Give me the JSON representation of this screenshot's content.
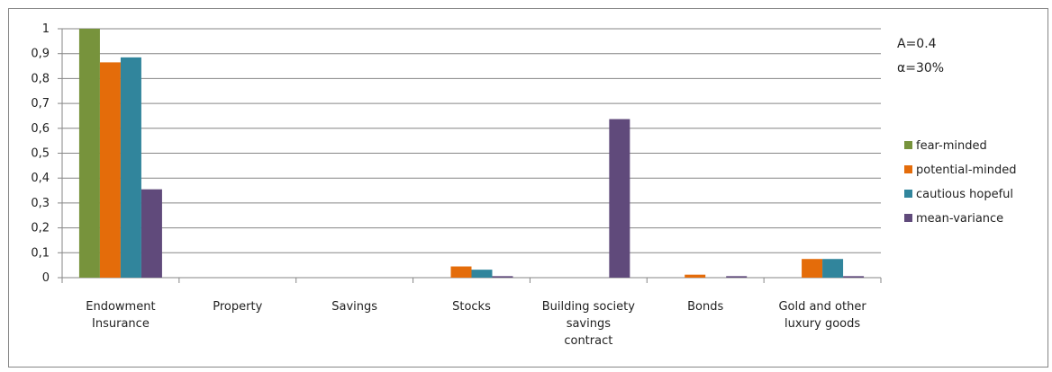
{
  "chart_data": {
    "type": "bar",
    "categories": [
      [
        "Endowment",
        "Insurance"
      ],
      [
        "Property"
      ],
      [
        "Savings"
      ],
      [
        "Stocks"
      ],
      [
        "Building society",
        "savings",
        "contract"
      ],
      [
        "Bonds"
      ],
      [
        "Gold and other",
        "luxury goods"
      ]
    ],
    "series": [
      {
        "name": "fear-minded",
        "color": "#77933C",
        "values": [
          1.0,
          0,
          0,
          0,
          0,
          0,
          0
        ]
      },
      {
        "name": "potential-minded",
        "color": "#E46C0A",
        "values": [
          0.865,
          0,
          0,
          0.045,
          0,
          0.012,
          0.075
        ]
      },
      {
        "name": "cautious hopeful",
        "color": "#31859C",
        "values": [
          0.885,
          0,
          0,
          0.032,
          0,
          0,
          0.075
        ]
      },
      {
        "name": "mean-variance",
        "color": "#604A7B",
        "values": [
          0.355,
          0,
          0,
          0.006,
          0.637,
          0.006,
          0.006
        ]
      }
    ],
    "ylim": [
      0,
      1
    ],
    "y_ticks": [
      "0",
      "0,1",
      "0,2",
      "0,3",
      "0,4",
      "0,5",
      "0,6",
      "0,7",
      "0,8",
      "0,9",
      "1"
    ],
    "title": "",
    "xlabel": "",
    "ylabel": "",
    "grid": true,
    "legend_position": "right",
    "annotations": [
      "A=0.4",
      "α=30%"
    ]
  }
}
